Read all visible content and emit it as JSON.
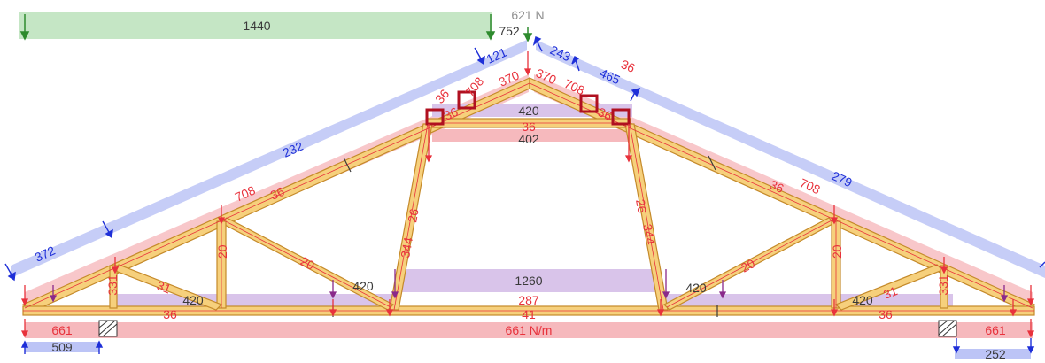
{
  "colors": {
    "timber_fill": "#f6d07c",
    "timber_edge": "#c58a2a",
    "load_red": "#e8323c",
    "load_red_band": "#f6b9bd",
    "load_blue": "#1e2fd8",
    "load_blue_band": "#bcc4f6",
    "load_green": "#2e8b2e",
    "load_green_band": "#bfe3bf",
    "load_purple": "#8a2a8a",
    "load_purple_band": "#d9c4ea",
    "load_grey": "#909090"
  },
  "top_loads": {
    "green_band": "1440",
    "green_point": "752",
    "apex_point": "621 N"
  },
  "left_rafter": {
    "wind_a": "372",
    "wind_b": "232",
    "wind_top": "121",
    "dead": "708",
    "snow": "36",
    "apex_dead": "370",
    "near_apex_dead": "708",
    "node_36a": "36",
    "node_36b": "36"
  },
  "right_rafter": {
    "wind_a": "243",
    "wind_b": "465",
    "wind_c": "279",
    "dead": "708",
    "snow": "36",
    "apex_dead": "370",
    "near_apex_dead": "708",
    "node_36a": "36",
    "node_36b": "36"
  },
  "collar": {
    "upper": "420",
    "middle": "36",
    "lower": "402"
  },
  "posts": {
    "left": "344",
    "left_small": "26",
    "right": "344",
    "right_small": "26"
  },
  "webs": {
    "left_diag": "20",
    "right_diag": "20",
    "left_vert": "20",
    "right_vert": "20",
    "left_small": "31",
    "right_small": "31",
    "left_stub": "331",
    "right_stub": "331"
  },
  "ceiling": {
    "center_band": "1260",
    "left_band": "420",
    "left_band_b": "420",
    "right_band": "420",
    "right_band_b": "420",
    "center_value": "287"
  },
  "bottom_chord": {
    "left_36": "36",
    "center_41": "41",
    "right_36": "36",
    "distributed": "661 N/m",
    "left_end": "661",
    "right_end": "661"
  },
  "reactions": {
    "left": "509",
    "right": "252"
  }
}
